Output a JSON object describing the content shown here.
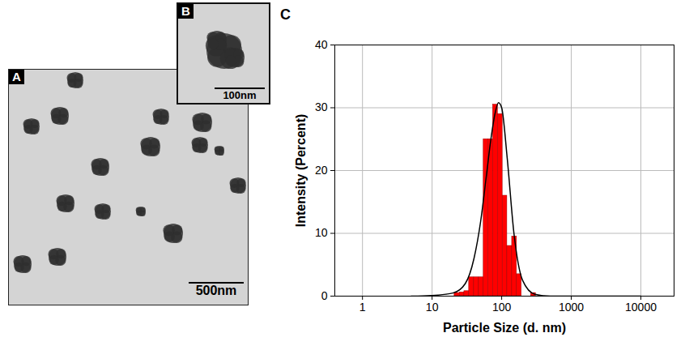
{
  "chart_data": {
    "type": "histogram",
    "panel_label": "C",
    "xlabel": "Particle Size (d. nm)",
    "ylabel": "Intensity (Percent)",
    "log": "x",
    "grid": true,
    "xlim": [
      0.4,
      30000
    ],
    "xticks": [
      1,
      10,
      100,
      1000,
      10000
    ],
    "ylim": [
      0,
      40
    ],
    "yticks": [
      0,
      10,
      20,
      30,
      40
    ],
    "bins": [
      21,
      25,
      29,
      34,
      40,
      47,
      55,
      64,
      75,
      88,
      103,
      120,
      141,
      165,
      193,
      226,
      264,
      309
    ],
    "values": [
      0.5,
      0.6,
      0.8,
      3,
      3,
      3,
      25,
      25,
      30.5,
      29,
      16,
      8,
      9.5,
      3.5,
      0,
      0,
      0.5
    ],
    "color": "#ff0000",
    "fit": {
      "type": "line",
      "color": "#000000",
      "x": [
        5,
        10,
        20,
        30,
        40,
        50,
        60,
        70,
        80,
        90,
        100,
        120,
        150,
        200,
        300,
        500,
        1000,
        10000
      ],
      "values": [
        0,
        0.1,
        0.5,
        2,
        6,
        12,
        19,
        25,
        29,
        30.8,
        30,
        22,
        10,
        2.5,
        0.3,
        0,
        0,
        0
      ]
    }
  },
  "images": [
    {
      "panel_label": "A",
      "scale_bar": "500nm"
    },
    {
      "panel_label": "B",
      "scale_bar": "100nm"
    }
  ]
}
